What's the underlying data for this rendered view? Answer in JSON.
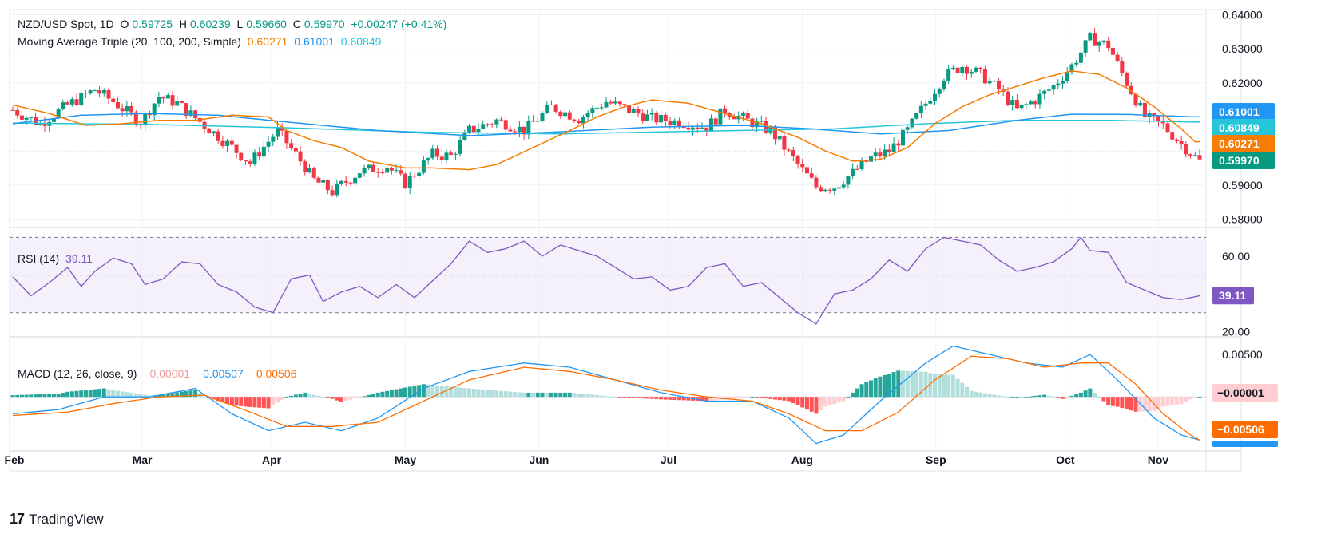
{
  "header": {
    "symbol": "NZD/USD Spot, 1D",
    "open_label": "O",
    "open": "0.59725",
    "high_label": "H",
    "high": "0.60239",
    "low_label": "L",
    "low": "0.59660",
    "close_label": "C",
    "close": "0.59970",
    "change": "+0.00247 (+0.41%)",
    "ma_label": "Moving Average Triple (20, 100, 200, Simple)",
    "ma20": "0.60271",
    "ma100": "0.61001",
    "ma200": "0.60849",
    "rsi_label": "RSI (14)",
    "rsi_value": "39.11",
    "macd_label": "MACD (12, 26, close, 9)",
    "macd_hist": "−0.00001",
    "macd_line": "−0.00507",
    "macd_signal": "−0.00506"
  },
  "footer": {
    "brand": "TradingView"
  },
  "colors": {
    "up": "#089981",
    "down": "#f23645",
    "ma20": "#f57c00",
    "ma100": "#2196f3",
    "ma200": "#26c6da",
    "rsi": "#7e57c2",
    "macd": "#2196f3",
    "signal": "#ff6d00",
    "hist_up_strong": "#26a69a",
    "hist_up_weak": "#b2dfdb",
    "hist_down_strong": "#ff5252",
    "hist_down_weak": "#ffcdd2"
  },
  "chart_data": {
    "type": "candlestick",
    "x_ticks": [
      "Feb",
      "Mar",
      "Apr",
      "May",
      "Jun",
      "Jul",
      "Aug",
      "Sep",
      "Oct",
      "Nov"
    ],
    "price_axis": {
      "ticks": [
        "0.64000",
        "0.63000",
        "0.62000",
        "0.61000",
        "0.60000",
        "0.59000",
        "0.58000"
      ],
      "ylim": [
        0.578,
        0.6415
      ]
    },
    "price_badges": [
      {
        "label": "0.61001",
        "value": 0.61001,
        "color": "#2196f3"
      },
      {
        "label": "0.60849",
        "value": 0.60849,
        "color": "#26c6da"
      },
      {
        "label": "0.60271",
        "value": 0.60271,
        "color": "#f57c00"
      },
      {
        "label": "0.59970",
        "value": 0.5997,
        "color": "#089981"
      }
    ],
    "ma20_points": [
      [
        0,
        0.6135
      ],
      [
        8,
        0.611
      ],
      [
        16,
        0.6075
      ],
      [
        24,
        0.608
      ],
      [
        32,
        0.609
      ],
      [
        40,
        0.609
      ],
      [
        48,
        0.6105
      ],
      [
        56,
        0.61
      ],
      [
        60,
        0.606
      ],
      [
        66,
        0.603
      ],
      [
        72,
        0.601
      ],
      [
        78,
        0.597
      ],
      [
        86,
        0.595
      ],
      [
        92,
        0.595
      ],
      [
        100,
        0.5945
      ],
      [
        106,
        0.596
      ],
      [
        114,
        0.601
      ],
      [
        122,
        0.606
      ],
      [
        128,
        0.61
      ],
      [
        134,
        0.613
      ],
      [
        140,
        0.615
      ],
      [
        148,
        0.614
      ],
      [
        156,
        0.611
      ],
      [
        164,
        0.608
      ],
      [
        172,
        0.604
      ],
      [
        178,
        0.6
      ],
      [
        184,
        0.597
      ],
      [
        190,
        0.5975
      ],
      [
        196,
        0.601
      ],
      [
        202,
        0.608
      ],
      [
        208,
        0.613
      ],
      [
        214,
        0.6165
      ],
      [
        220,
        0.619
      ],
      [
        226,
        0.6215
      ],
      [
        232,
        0.6235
      ],
      [
        238,
        0.6225
      ],
      [
        244,
        0.6185
      ],
      [
        250,
        0.613
      ],
      [
        256,
        0.6065
      ],
      [
        259,
        0.6027
      ]
    ],
    "ma100_points": [
      [
        0,
        0.608
      ],
      [
        15,
        0.6105
      ],
      [
        30,
        0.611
      ],
      [
        45,
        0.6105
      ],
      [
        60,
        0.6085
      ],
      [
        80,
        0.606
      ],
      [
        100,
        0.6045
      ],
      [
        118,
        0.6055
      ],
      [
        140,
        0.607
      ],
      [
        160,
        0.6075
      ],
      [
        175,
        0.6065
      ],
      [
        190,
        0.605
      ],
      [
        205,
        0.606
      ],
      [
        220,
        0.609
      ],
      [
        232,
        0.6108
      ],
      [
        245,
        0.6107
      ],
      [
        259,
        0.61
      ]
    ],
    "ma200_points": [
      [
        0,
        0.6082
      ],
      [
        30,
        0.6078
      ],
      [
        60,
        0.6068
      ],
      [
        90,
        0.6055
      ],
      [
        120,
        0.605
      ],
      [
        150,
        0.6058
      ],
      [
        180,
        0.6065
      ],
      [
        200,
        0.608
      ],
      [
        220,
        0.609
      ],
      [
        240,
        0.609
      ],
      [
        259,
        0.6085
      ]
    ],
    "price_anchors": [
      [
        0,
        0.612
      ],
      [
        6,
        0.608
      ],
      [
        12,
        0.6135
      ],
      [
        18,
        0.618
      ],
      [
        22,
        0.6145
      ],
      [
        28,
        0.6085
      ],
      [
        32,
        0.616
      ],
      [
        36,
        0.614
      ],
      [
        42,
        0.6075
      ],
      [
        48,
        0.601
      ],
      [
        52,
        0.5965
      ],
      [
        58,
        0.606
      ],
      [
        62,
        0.599
      ],
      [
        66,
        0.5915
      ],
      [
        70,
        0.588
      ],
      [
        76,
        0.594
      ],
      [
        82,
        0.5955
      ],
      [
        86,
        0.5905
      ],
      [
        92,
        0.599
      ],
      [
        96,
        0.5985
      ],
      [
        100,
        0.606
      ],
      [
        106,
        0.609
      ],
      [
        112,
        0.606
      ],
      [
        118,
        0.613
      ],
      [
        124,
        0.6095
      ],
      [
        130,
        0.6145
      ],
      [
        136,
        0.6115
      ],
      [
        140,
        0.6095
      ],
      [
        146,
        0.6085
      ],
      [
        152,
        0.607
      ],
      [
        156,
        0.612
      ],
      [
        160,
        0.6095
      ],
      [
        166,
        0.606
      ],
      [
        172,
        0.596
      ],
      [
        176,
        0.5895
      ],
      [
        180,
        0.5895
      ],
      [
        184,
        0.5935
      ],
      [
        188,
        0.598
      ],
      [
        192,
        0.6
      ],
      [
        196,
        0.606
      ],
      [
        200,
        0.614
      ],
      [
        204,
        0.622
      ],
      [
        208,
        0.625
      ],
      [
        212,
        0.6225
      ],
      [
        216,
        0.618
      ],
      [
        220,
        0.612
      ],
      [
        224,
        0.615
      ],
      [
        228,
        0.619
      ],
      [
        232,
        0.625
      ],
      [
        236,
        0.633
      ],
      [
        240,
        0.631
      ],
      [
        244,
        0.62
      ],
      [
        248,
        0.61
      ],
      [
        252,
        0.6075
      ],
      [
        256,
        0.602
      ],
      [
        260,
        0.597
      ]
    ],
    "rsi": {
      "axis_ticks": [
        "60.00",
        "20.00"
      ],
      "ylim": [
        18,
        74
      ],
      "levels": [
        70,
        50,
        30
      ],
      "anchors": [
        [
          0,
          49
        ],
        [
          4,
          39
        ],
        [
          8,
          46
        ],
        [
          12,
          54
        ],
        [
          15,
          44
        ],
        [
          18,
          52
        ],
        [
          22,
          59
        ],
        [
          26,
          56
        ],
        [
          29,
          45
        ],
        [
          33,
          48
        ],
        [
          37,
          57
        ],
        [
          41,
          56
        ],
        [
          45,
          45
        ],
        [
          49,
          41
        ],
        [
          53,
          33
        ],
        [
          57,
          30
        ],
        [
          61,
          48
        ],
        [
          65,
          50
        ],
        [
          68,
          36
        ],
        [
          72,
          41
        ],
        [
          76,
          44
        ],
        [
          80,
          38
        ],
        [
          84,
          45
        ],
        [
          88,
          38
        ],
        [
          92,
          47
        ],
        [
          96,
          56
        ],
        [
          100,
          68
        ],
        [
          104,
          62
        ],
        [
          108,
          64
        ],
        [
          112,
          68
        ],
        [
          116,
          60
        ],
        [
          120,
          66
        ],
        [
          124,
          63
        ],
        [
          128,
          60
        ],
        [
          132,
          54
        ],
        [
          136,
          48
        ],
        [
          140,
          49
        ],
        [
          144,
          42
        ],
        [
          148,
          44
        ],
        [
          152,
          54
        ],
        [
          156,
          56
        ],
        [
          160,
          44
        ],
        [
          164,
          46
        ],
        [
          168,
          38
        ],
        [
          172,
          30
        ],
        [
          176,
          24
        ],
        [
          180,
          40
        ],
        [
          184,
          42
        ],
        [
          188,
          48
        ],
        [
          192,
          58
        ],
        [
          196,
          52
        ],
        [
          200,
          64
        ],
        [
          204,
          70
        ],
        [
          208,
          68
        ],
        [
          212,
          66
        ],
        [
          216,
          58
        ],
        [
          220,
          52
        ],
        [
          224,
          54
        ],
        [
          228,
          57
        ],
        [
          232,
          64
        ],
        [
          234,
          70
        ],
        [
          236,
          63
        ],
        [
          240,
          62
        ],
        [
          244,
          46
        ],
        [
          248,
          42
        ],
        [
          252,
          38
        ],
        [
          256,
          37
        ],
        [
          260,
          39
        ]
      ]
    },
    "macd": {
      "axis_ticks": [
        "0.00500"
      ],
      "ylim": [
        -0.0062,
        0.0068
      ],
      "line_anchors": [
        [
          0,
          -0.002
        ],
        [
          10,
          -0.0015
        ],
        [
          20,
          0.0
        ],
        [
          30,
          0.0
        ],
        [
          40,
          0.001
        ],
        [
          48,
          -0.002
        ],
        [
          56,
          -0.004
        ],
        [
          64,
          -0.003
        ],
        [
          72,
          -0.004
        ],
        [
          80,
          -0.0025
        ],
        [
          90,
          0.001
        ],
        [
          100,
          0.003
        ],
        [
          112,
          0.004
        ],
        [
          122,
          0.0035
        ],
        [
          132,
          0.002
        ],
        [
          142,
          0.0005
        ],
        [
          152,
          -0.0005
        ],
        [
          162,
          -0.0005
        ],
        [
          170,
          -0.0025
        ],
        [
          176,
          -0.0055
        ],
        [
          182,
          -0.0045
        ],
        [
          190,
          -0.0005
        ],
        [
          200,
          0.004
        ],
        [
          206,
          0.006
        ],
        [
          214,
          0.005
        ],
        [
          222,
          0.004
        ],
        [
          230,
          0.0035
        ],
        [
          236,
          0.005
        ],
        [
          242,
          0.002
        ],
        [
          250,
          -0.0025
        ],
        [
          256,
          -0.0045
        ],
        [
          260,
          -0.0051
        ]
      ],
      "signal_anchors": [
        [
          0,
          -0.0022
        ],
        [
          12,
          -0.0018
        ],
        [
          22,
          -0.0008
        ],
        [
          32,
          0.0
        ],
        [
          42,
          0.0002
        ],
        [
          52,
          -0.0018
        ],
        [
          60,
          -0.0035
        ],
        [
          70,
          -0.0035
        ],
        [
          80,
          -0.003
        ],
        [
          90,
          -0.0005
        ],
        [
          100,
          0.002
        ],
        [
          112,
          0.0035
        ],
        [
          122,
          0.003
        ],
        [
          132,
          0.002
        ],
        [
          142,
          0.0008
        ],
        [
          152,
          0.0
        ],
        [
          162,
          -0.0005
        ],
        [
          170,
          -0.002
        ],
        [
          178,
          -0.004
        ],
        [
          186,
          -0.004
        ],
        [
          194,
          -0.0018
        ],
        [
          202,
          0.002
        ],
        [
          210,
          0.0048
        ],
        [
          218,
          0.0045
        ],
        [
          226,
          0.0035
        ],
        [
          234,
          0.004
        ],
        [
          240,
          0.004
        ],
        [
          246,
          0.0015
        ],
        [
          252,
          -0.002
        ],
        [
          258,
          -0.0045
        ],
        [
          260,
          -0.0051
        ]
      ]
    },
    "macd_badges": [
      {
        "label": "−0.00001",
        "value": -1e-05,
        "color": "#ffcdd2",
        "text_color": "#131722"
      },
      {
        "label": "−0.00506",
        "value": -0.00506,
        "color": "#ff6d00",
        "text_color": "#ffffff"
      },
      {
        "label": "−0.00507",
        "value": -0.0058,
        "color": "#2196f3",
        "text_color": "#ffffff"
      }
    ],
    "rsi_badge": {
      "label": "39.11",
      "value": 39.11,
      "color": "#7e57c2"
    }
  }
}
